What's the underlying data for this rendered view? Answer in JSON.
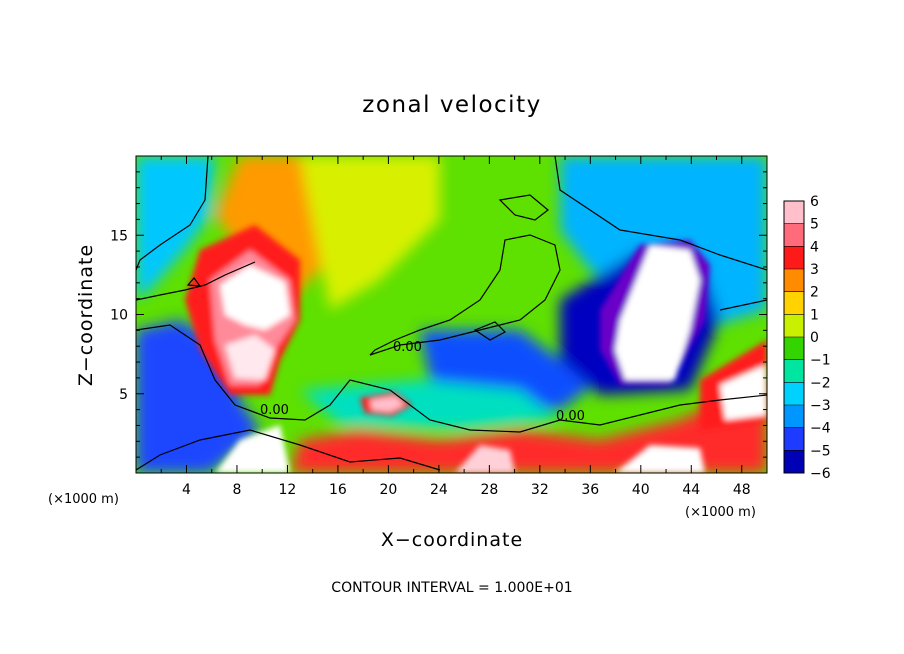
{
  "chart_data": {
    "type": "heatmap",
    "title": "zonal velocity",
    "xlabel": "X−coordinate",
    "ylabel": "Z−coordinate",
    "x_unit_label": "(×1000 m)",
    "x_unit_label_right": "(×1000 m)",
    "xlim": [
      0,
      50
    ],
    "ylim": [
      0,
      20
    ],
    "x_ticks": [
      "4",
      "8",
      "12",
      "16",
      "20",
      "24",
      "28",
      "32",
      "36",
      "40",
      "44",
      "48"
    ],
    "y_ticks": [
      "5",
      "10",
      "15"
    ],
    "colorbar": {
      "range": [
        -6,
        6
      ],
      "labels": [
        "6",
        "5",
        "4",
        "3",
        "2",
        "1",
        "0",
        "−1",
        "−2",
        "−3",
        "−4",
        "−5",
        "−6"
      ],
      "colors": [
        "#ffc0cb",
        "#ff6b7b",
        "#ff1a1a",
        "#ff8c00",
        "#ffd200",
        "#c8f000",
        "#34d400",
        "#00e6a0",
        "#00d2ff",
        "#0096ff",
        "#1e3cff",
        "#0000b4",
        "#7a00c8"
      ]
    },
    "contour_labels": [
      "0.00",
      "0.00",
      "0.00"
    ],
    "contour_interval_note": "CONTOUR INTERVAL = 1.000E+01"
  }
}
